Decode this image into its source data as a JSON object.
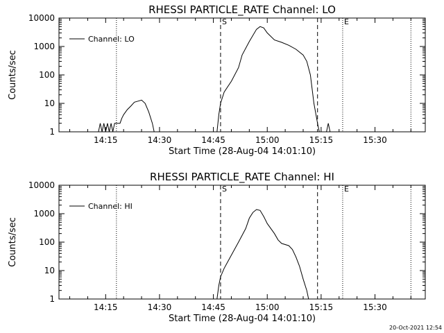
{
  "footer": {
    "timestamp": "20-Oct-2021 12:54"
  },
  "chart_data": [
    {
      "type": "line",
      "title": "RHESSI PARTICLE_RATE Channel: LO",
      "xlabel": "Start Time (28-Aug-04 14:01:10)",
      "ylabel": "Counts/sec",
      "yscale": "log",
      "xlim": [
        "14:02",
        "15:44"
      ],
      "ylim": [
        1,
        10000
      ],
      "grid": false,
      "legend_position": "top-left",
      "xticks": [
        "14:15",
        "14:30",
        "14:45",
        "15:00",
        "15:15",
        "15:30"
      ],
      "yticks": [
        {
          "value": 1,
          "label": "1"
        },
        {
          "value": 10,
          "label": "10"
        },
        {
          "value": 100,
          "label": "100"
        },
        {
          "value": 1000,
          "label": "1000"
        },
        {
          "value": 10000,
          "label": "10000"
        }
      ],
      "markers": [
        {
          "label": "S",
          "time": "14:47",
          "style": "dashed"
        },
        {
          "label": "E",
          "time": "15:14",
          "style": "dashed"
        }
      ],
      "marker_lines": [
        {
          "time": "14:47",
          "style": "dashed"
        },
        {
          "time": "15:14",
          "style": "dashed"
        },
        {
          "time": "14:02",
          "style": "dotted"
        },
        {
          "time": "14:18",
          "style": "dotted"
        },
        {
          "time": "15:21",
          "style": "dotted"
        },
        {
          "time": "15:40",
          "style": "dotted"
        }
      ],
      "series": [
        {
          "name": "Channel: LO",
          "points": [
            [
              "14:13:00",
              1
            ],
            [
              "14:13:30",
              2
            ],
            [
              "14:14:00",
              1
            ],
            [
              "14:14:30",
              2
            ],
            [
              "14:15:00",
              1
            ],
            [
              "14:15:30",
              2
            ],
            [
              "14:16:00",
              1
            ],
            [
              "14:16:30",
              2
            ],
            [
              "14:17:00",
              1
            ],
            [
              "14:17:30",
              2
            ],
            [
              "14:18:30",
              2
            ],
            [
              "14:19:00",
              2
            ],
            [
              "14:19:30",
              3
            ],
            [
              "14:20:00",
              4
            ],
            [
              "14:21:00",
              6
            ],
            [
              "14:22:00",
              8
            ],
            [
              "14:23:00",
              11
            ],
            [
              "14:24:00",
              12
            ],
            [
              "14:25:00",
              13
            ],
            [
              "14:26:00",
              10
            ],
            [
              "14:27:00",
              5
            ],
            [
              "14:28:00",
              2
            ],
            [
              "14:28:30",
              1
            ],
            [
              "14:46:00",
              1
            ],
            [
              "14:46:30",
              4
            ],
            [
              "14:47:00",
              10
            ],
            [
              "14:48:00",
              25
            ],
            [
              "14:50:00",
              60
            ],
            [
              "14:52:00",
              180
            ],
            [
              "14:53:00",
              500
            ],
            [
              "14:55:00",
              1500
            ],
            [
              "14:57:00",
              4000
            ],
            [
              "14:58:00",
              5000
            ],
            [
              "14:59:00",
              4500
            ],
            [
              "15:00:00",
              3000
            ],
            [
              "15:02:00",
              1700
            ],
            [
              "15:04:00",
              1400
            ],
            [
              "15:06:00",
              1100
            ],
            [
              "15:08:00",
              800
            ],
            [
              "15:10:00",
              500
            ],
            [
              "15:11:00",
              300
            ],
            [
              "15:12:00",
              100
            ],
            [
              "15:13:00",
              10
            ],
            [
              "15:14:00",
              2
            ],
            [
              "15:14:30",
              1
            ],
            [
              "15:16:30",
              1
            ],
            [
              "15:17:00",
              2
            ],
            [
              "15:17:30",
              1
            ]
          ]
        }
      ]
    },
    {
      "type": "line",
      "title": "RHESSI PARTICLE_RATE Channel: HI",
      "xlabel": "Start Time (28-Aug-04 14:01:10)",
      "ylabel": "Counts/sec",
      "yscale": "log",
      "xlim": [
        "14:02",
        "15:44"
      ],
      "ylim": [
        1,
        10000
      ],
      "grid": false,
      "legend_position": "top-left",
      "xticks": [
        "14:15",
        "14:30",
        "14:45",
        "15:00",
        "15:15",
        "15:30"
      ],
      "yticks": [
        {
          "value": 1,
          "label": "1"
        },
        {
          "value": 10,
          "label": "10"
        },
        {
          "value": 100,
          "label": "100"
        },
        {
          "value": 1000,
          "label": "1000"
        },
        {
          "value": 10000,
          "label": "10000"
        }
      ],
      "markers": [
        {
          "label": "S",
          "time": "14:47",
          "style": "dashed"
        },
        {
          "label": "E",
          "time": "15:14",
          "style": "dashed"
        }
      ],
      "marker_lines": [
        {
          "time": "14:47",
          "style": "dashed"
        },
        {
          "time": "15:14",
          "style": "dashed"
        },
        {
          "time": "14:02",
          "style": "dotted"
        },
        {
          "time": "14:18",
          "style": "dotted"
        },
        {
          "time": "15:21",
          "style": "dotted"
        },
        {
          "time": "15:40",
          "style": "dotted"
        }
      ],
      "series": [
        {
          "name": "Channel: HI",
          "points": [
            [
              "14:46:00",
              1
            ],
            [
              "14:46:30",
              3
            ],
            [
              "14:47:00",
              6
            ],
            [
              "14:48:00",
              12
            ],
            [
              "14:50:00",
              35
            ],
            [
              "14:52:00",
              100
            ],
            [
              "14:54:00",
              300
            ],
            [
              "14:55:00",
              700
            ],
            [
              "14:56:00",
              1100
            ],
            [
              "14:57:00",
              1400
            ],
            [
              "14:58:00",
              1300
            ],
            [
              "14:59:00",
              800
            ],
            [
              "15:00:00",
              450
            ],
            [
              "15:02:00",
              200
            ],
            [
              "15:03:00",
              120
            ],
            [
              "15:04:00",
              90
            ],
            [
              "15:06:00",
              75
            ],
            [
              "15:07:00",
              55
            ],
            [
              "15:08:00",
              30
            ],
            [
              "15:09:00",
              14
            ],
            [
              "15:10:00",
              5
            ],
            [
              "15:11:00",
              2
            ],
            [
              "15:11:30",
              1
            ]
          ]
        }
      ]
    }
  ]
}
